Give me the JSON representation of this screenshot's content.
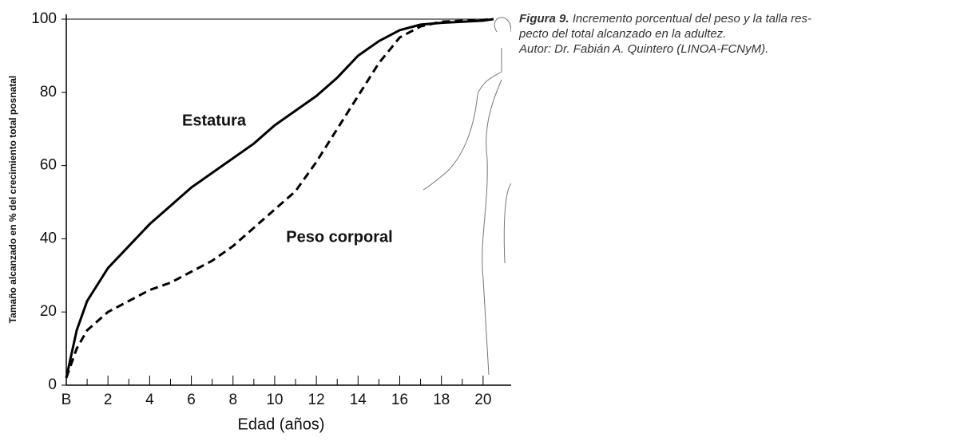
{
  "chart_data": {
    "type": "line",
    "y_label": "Tamaño alcanzado en % del crecimiento total posnatal",
    "x_label": "Edad (años)",
    "caption": {
      "label": "Figura 9.",
      "lines": [
        "Incremento porcentual del peso y la talla res-",
        "pecto del total alcanzado en la adultez.",
        "Autor: Dr. Fabián A. Quintero (LINOA-FCNyM)."
      ]
    },
    "x": [
      0,
      0.5,
      1,
      2,
      3,
      4,
      5,
      6,
      7,
      8,
      9,
      10,
      11,
      12,
      13,
      14,
      15,
      16,
      17,
      18,
      20,
      20.5
    ],
    "series": [
      {
        "name": "Estatura",
        "color": "#000000",
        "dash": false,
        "values": [
          2,
          15,
          23,
          32,
          38,
          44,
          49,
          54,
          58,
          62,
          66,
          71,
          75,
          79,
          84,
          90,
          94,
          97,
          98.5,
          99,
          99.6,
          100
        ]
      },
      {
        "name": "Peso corporal",
        "color": "#000000",
        "dash": true,
        "values": [
          2,
          10,
          15,
          20,
          23,
          26,
          28,
          31,
          34,
          38,
          43,
          48,
          53,
          61,
          70,
          79,
          88,
          95,
          98,
          99.3,
          99.8,
          100
        ]
      }
    ],
    "xlim": [
      0,
      21.5
    ],
    "ylim": [
      0,
      100
    ],
    "xticks": [
      {
        "value": 0,
        "label": "B"
      },
      2,
      4,
      6,
      8,
      10,
      12,
      14,
      16,
      18,
      20
    ],
    "minor_xticks": [
      1,
      3,
      5,
      7,
      9,
      11,
      13,
      15,
      17,
      19
    ],
    "yticks": [
      0,
      20,
      40,
      60,
      80,
      100
    ],
    "reference_line": 100
  }
}
